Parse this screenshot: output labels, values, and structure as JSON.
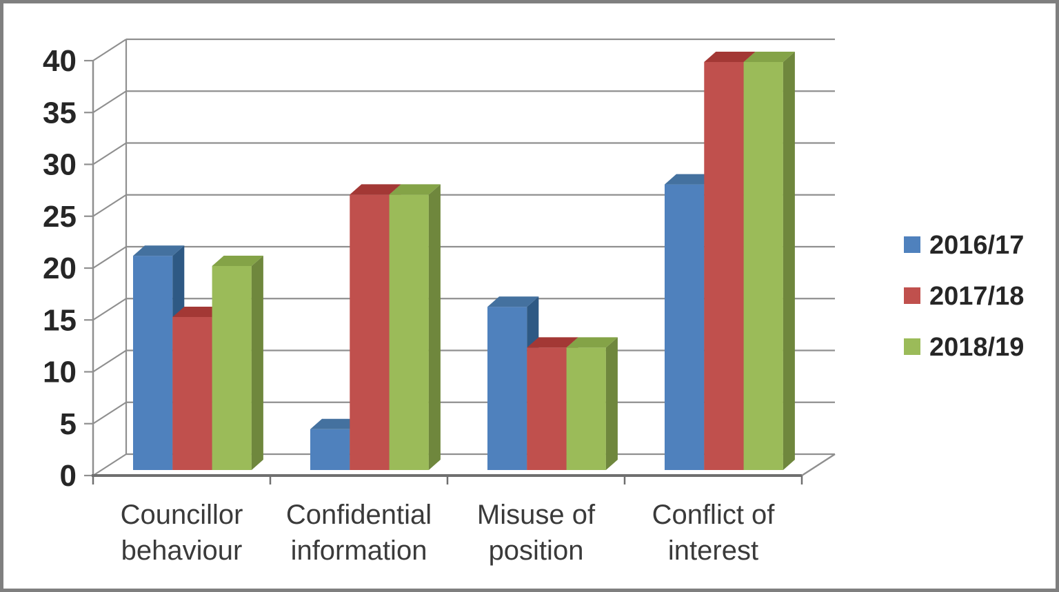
{
  "frame": {
    "border_color": "#7f7f7f",
    "background": "#ffffff"
  },
  "chart_data": {
    "type": "bar",
    "projection": "3d-clustered-column",
    "title": "",
    "xlabel": "",
    "ylabel": "",
    "categories": [
      "Councillor behaviour",
      "Confidential information",
      "Misuse of position",
      "Conflict of interest"
    ],
    "category_lines": [
      [
        "Councillor",
        "behaviour"
      ],
      [
        "Confidential",
        "information"
      ],
      [
        "Misuse of",
        "position"
      ],
      [
        "Conflict of",
        "interest"
      ]
    ],
    "series": [
      {
        "name": "2016/17",
        "values": [
          21,
          4,
          16,
          28
        ],
        "color": "#4f81bd",
        "color_top": "#44719f",
        "color_side": "#2e5984"
      },
      {
        "name": "2017/18",
        "values": [
          15,
          27,
          12,
          40
        ],
        "color": "#c0504d",
        "color_top": "#a33835",
        "color_side": "#8c3331"
      },
      {
        "name": "2018/19",
        "values": [
          20,
          27,
          12,
          40
        ],
        "color": "#9bbb59",
        "color_top": "#84a347",
        "color_side": "#6f873d"
      }
    ],
    "ylim": [
      0,
      40
    ],
    "ytick_step": 5,
    "ytick_labels": [
      "0",
      "5",
      "10",
      "15",
      "20",
      "25",
      "30",
      "35",
      "40"
    ],
    "grid": true,
    "legend_position": "right",
    "colors": {
      "gridline": "#8f8f8f",
      "axis": "#8f8f8f",
      "baseline": "#6f6f6f",
      "tick_text": "#262626",
      "category_text": "#3a3a3a",
      "legend_text": "#262626"
    }
  }
}
